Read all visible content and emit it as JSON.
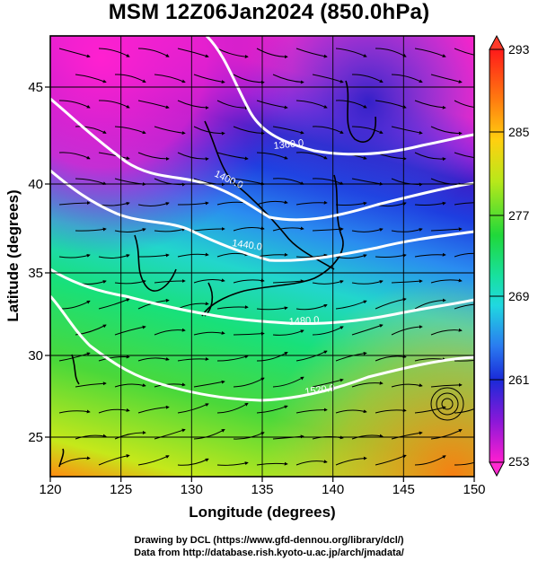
{
  "title": "MSM 12Z06Jan2024 (850.0hPa)",
  "axes": {
    "xlabel": "Longitude (degrees)",
    "ylabel": "Latitude  (degrees)",
    "x_ticks": [
      "120",
      "125",
      "130",
      "135",
      "140",
      "145",
      "150"
    ],
    "y_ticks": [
      "25",
      "30",
      "35",
      "40",
      "45"
    ]
  },
  "colorbar": {
    "labels": [
      "293",
      "285",
      "277",
      "269",
      "261",
      "253"
    ]
  },
  "contours": [
    {
      "label": "1360.0"
    },
    {
      "label": "1400.0"
    },
    {
      "label": "1440.0"
    },
    {
      "label": "1480.0"
    },
    {
      "label": "1520.0"
    }
  ],
  "credits": {
    "line1": "Drawing by DCL (https://www.gfd-dennou.org/library/dcl/)",
    "line2": "Data from http://database.rish.kyoto-u.ac.jp/arch/jmadata/"
  },
  "colors": {
    "warm": "#ff7a1a",
    "green": "#2ad23a",
    "cyan": "#22d6d6",
    "blue": "#1a3cd8",
    "magenta": "#ff1ec8"
  }
}
